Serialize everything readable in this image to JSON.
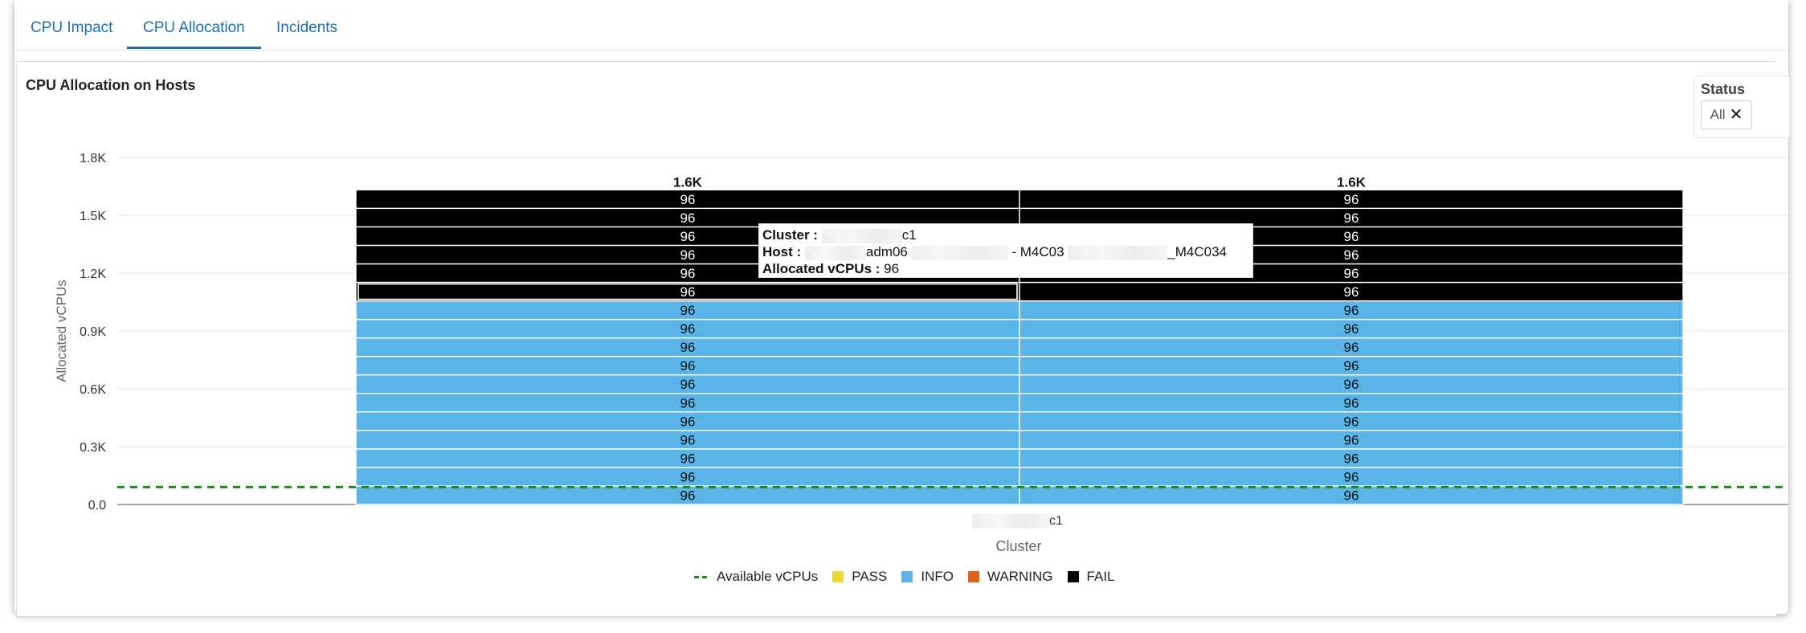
{
  "tabs": [
    {
      "label": "CPU Impact",
      "active": false
    },
    {
      "label": "CPU Allocation",
      "active": true
    },
    {
      "label": "Incidents",
      "active": false
    }
  ],
  "panel": {
    "title": "CPU Allocation on Hosts"
  },
  "status_filter": {
    "label": "Status",
    "value": "All",
    "clear_icon": "close-icon"
  },
  "tooltip": {
    "cluster_label": "Cluster :",
    "cluster_value": "c1",
    "host_label": "Host :",
    "host_part1": "adm06",
    "host_part2": "- M4C03",
    "host_part3": "_M4C034",
    "alloc_label": "Allocated vCPUs :",
    "alloc_value": "96"
  },
  "legend": [
    {
      "label": "Available vCPUs",
      "color": "#1a8a1a",
      "kind": "dashed-line"
    },
    {
      "label": "PASS",
      "color": "#ecd933",
      "kind": "square"
    },
    {
      "label": "INFO",
      "color": "#5ab4e8",
      "kind": "square"
    },
    {
      "label": "WARNING",
      "color": "#d9631b",
      "kind": "square"
    },
    {
      "label": "FAIL",
      "color": "#000000",
      "kind": "square"
    }
  ],
  "chart_data": {
    "type": "bar",
    "stacked": true,
    "ylabel": "Allocated vCPUs",
    "xlabel": "Cluster",
    "category": "c1",
    "y_ticks": [
      "0.0",
      "0.3K",
      "0.6K",
      "0.9K",
      "1.2K",
      "1.5K",
      "1.8K"
    ],
    "ylim": [
      0,
      1800
    ],
    "available_vcpus": 90,
    "bars": [
      {
        "total_label": "1.6K",
        "segments": [
          {
            "value": 96,
            "status": "INFO"
          },
          {
            "value": 96,
            "status": "INFO"
          },
          {
            "value": 96,
            "status": "INFO"
          },
          {
            "value": 96,
            "status": "INFO"
          },
          {
            "value": 96,
            "status": "INFO"
          },
          {
            "value": 96,
            "status": "INFO"
          },
          {
            "value": 96,
            "status": "INFO"
          },
          {
            "value": 96,
            "status": "INFO"
          },
          {
            "value": 96,
            "status": "INFO"
          },
          {
            "value": 96,
            "status": "INFO"
          },
          {
            "value": 96,
            "status": "INFO"
          },
          {
            "value": 96,
            "status": "FAIL"
          },
          {
            "value": 96,
            "status": "FAIL"
          },
          {
            "value": 96,
            "status": "FAIL"
          },
          {
            "value": 96,
            "status": "FAIL"
          },
          {
            "value": 96,
            "status": "FAIL"
          },
          {
            "value": 96,
            "status": "FAIL"
          }
        ]
      },
      {
        "total_label": "1.6K",
        "segments": [
          {
            "value": 96,
            "status": "INFO"
          },
          {
            "value": 96,
            "status": "INFO"
          },
          {
            "value": 96,
            "status": "INFO"
          },
          {
            "value": 96,
            "status": "INFO"
          },
          {
            "value": 96,
            "status": "INFO"
          },
          {
            "value": 96,
            "status": "INFO"
          },
          {
            "value": 96,
            "status": "INFO"
          },
          {
            "value": 96,
            "status": "INFO"
          },
          {
            "value": 96,
            "status": "INFO"
          },
          {
            "value": 96,
            "status": "INFO"
          },
          {
            "value": 96,
            "status": "INFO"
          },
          {
            "value": 96,
            "status": "FAIL"
          },
          {
            "value": 96,
            "status": "FAIL"
          },
          {
            "value": 96,
            "status": "FAIL"
          },
          {
            "value": 96,
            "status": "FAIL"
          },
          {
            "value": 96,
            "status": "FAIL"
          },
          {
            "value": 96,
            "status": "FAIL"
          }
        ]
      }
    ],
    "highlighted": {
      "bar": 0,
      "segment": 11
    },
    "status_colors": {
      "PASS": "#ecd933",
      "INFO": "#5ab4e8",
      "WARNING": "#d9631b",
      "FAIL": "#000000"
    }
  }
}
